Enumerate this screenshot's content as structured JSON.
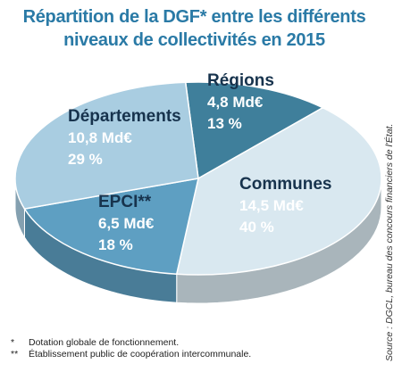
{
  "chart_data": {
    "type": "pie",
    "title": "Répartition de la DGF* entre les différents niveaux de collectivités en 2015",
    "categories": [
      "Régions",
      "Communes",
      "EPCI**",
      "Départements"
    ],
    "values": [
      13,
      40,
      18,
      29
    ],
    "value_labels": [
      "13 %",
      "40 %",
      "18 %",
      "29 %"
    ],
    "amount_labels": [
      "4,8 Md€",
      "14,5 Md€",
      "6,5 Md€",
      "10,8 Md€"
    ],
    "colors": [
      "#3f7f9b",
      "#d9e8f0",
      "#5e9fc2",
      "#a9cde1"
    ],
    "notes": [
      {
        "mark": "*",
        "text": "Dotation globale de fonctionnement."
      },
      {
        "mark": "**",
        "text": "Établissement public de coopération intercommunale."
      }
    ],
    "source": "Source : DGCL, bureau des concours financiers de l'État."
  }
}
